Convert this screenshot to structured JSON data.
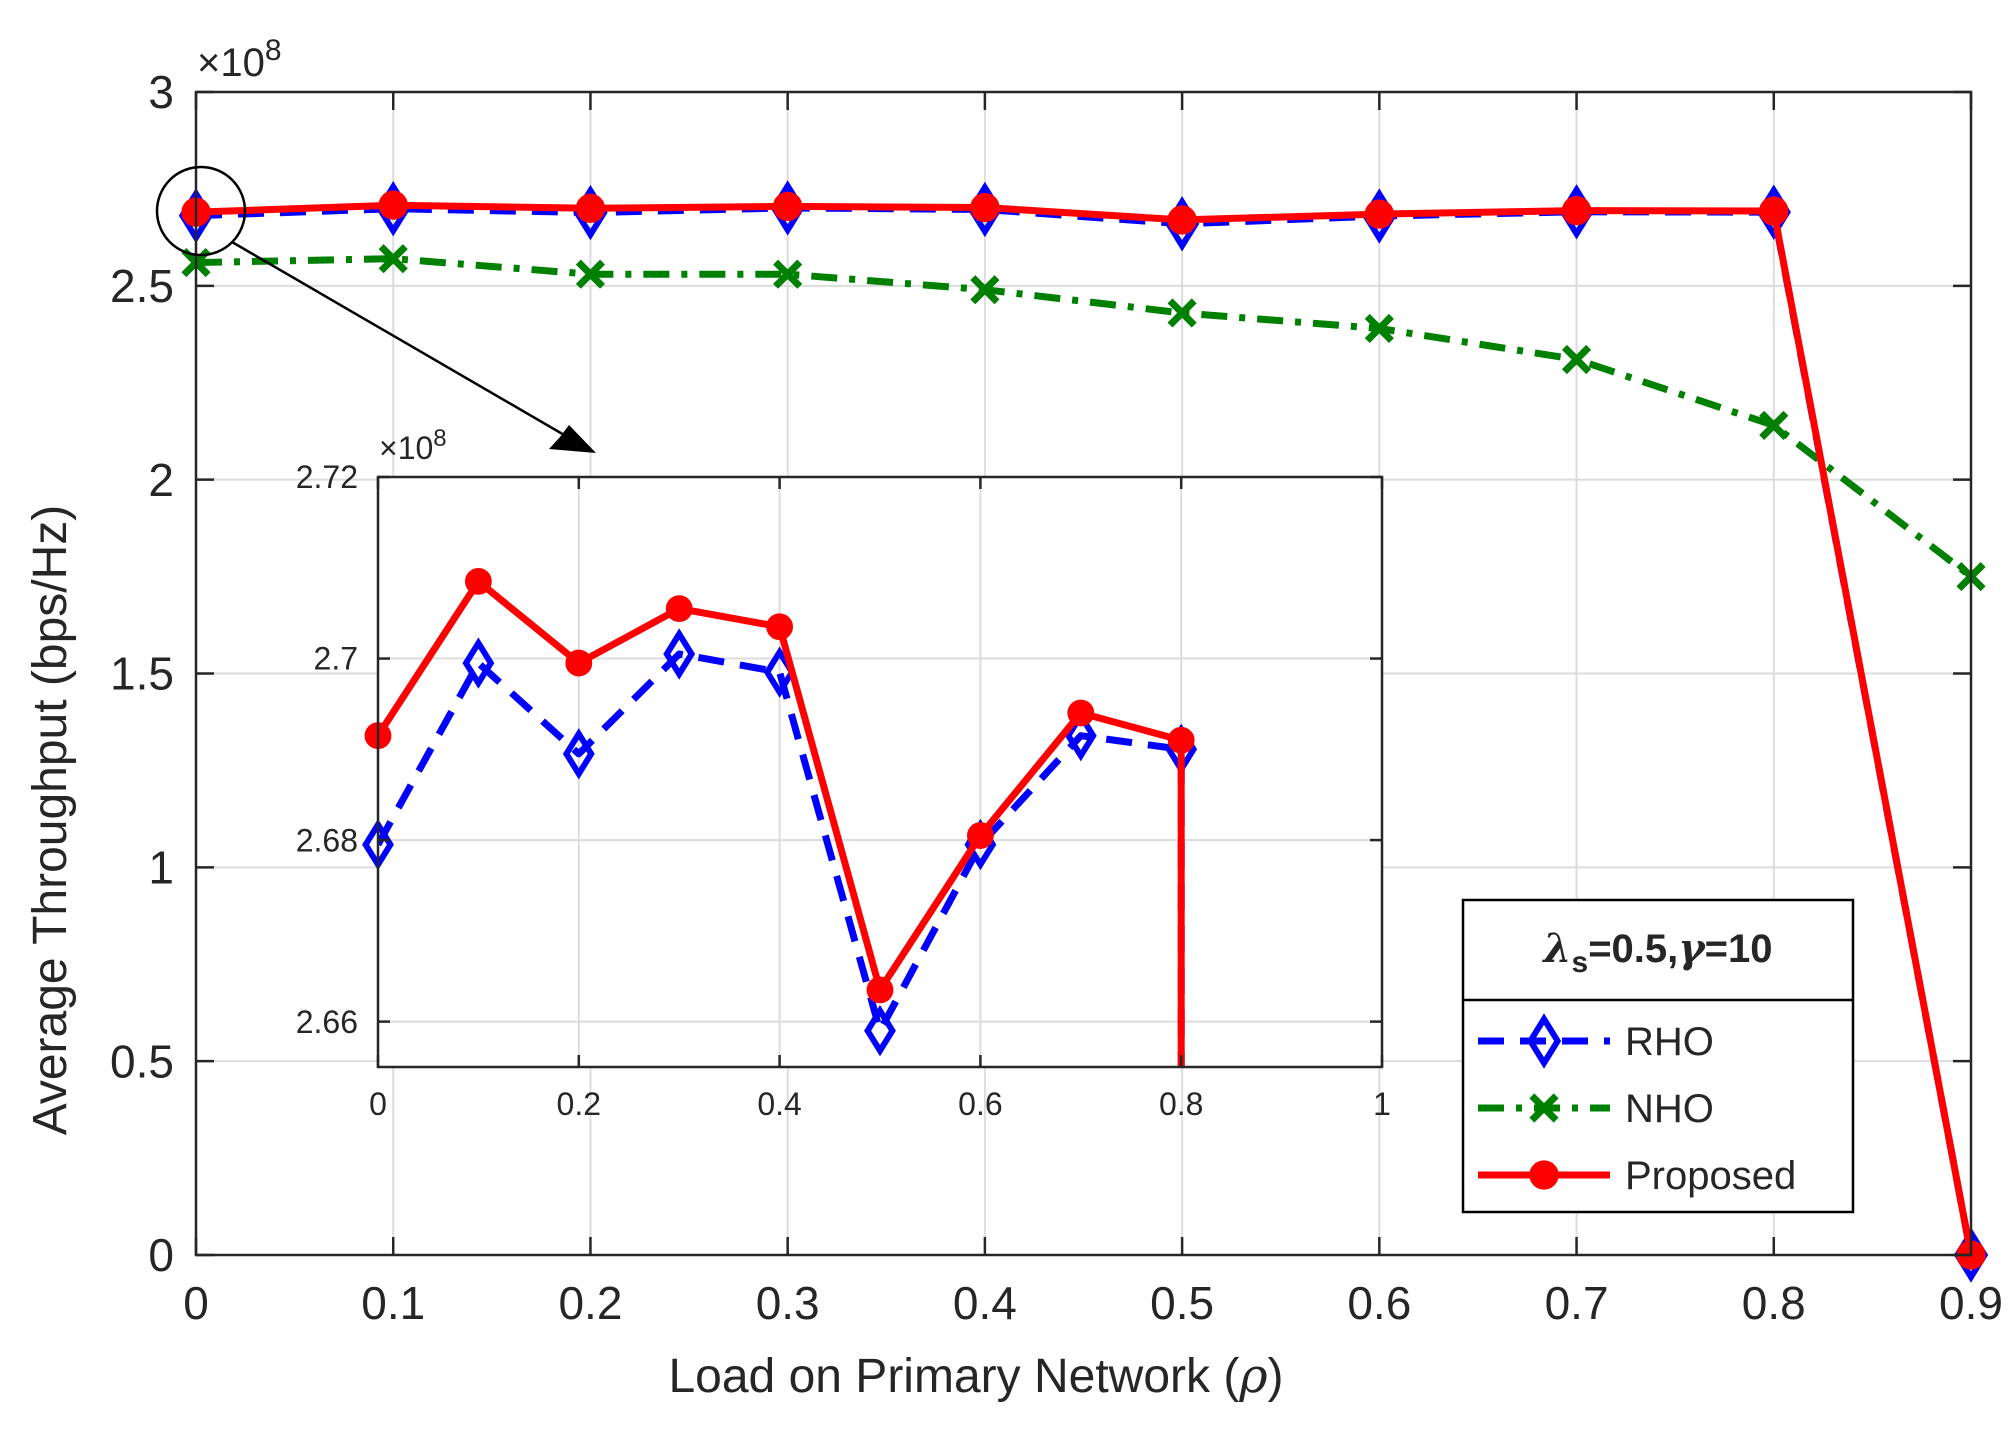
{
  "chart_data": [
    {
      "id": "main",
      "type": "line",
      "xlabel": "Load on Primary Network (",
      "xlabel_symbol": "ρ",
      "xlabel_close": ")",
      "ylabel": "Average Throughput (bps/Hz)",
      "exponent_base": "×10",
      "exponent_power": "8",
      "xlim": [
        0,
        0.9
      ],
      "ylim": [
        0,
        3
      ],
      "xticks": [
        0,
        0.1,
        0.2,
        0.3,
        0.4,
        0.5,
        0.6,
        0.7,
        0.8,
        0.9
      ],
      "xtick_labels": [
        "0",
        "0.1",
        "0.2",
        "0.3",
        "0.4",
        "0.5",
        "0.6",
        "0.7",
        "0.8",
        "0.9"
      ],
      "yticks": [
        0,
        0.5,
        1,
        1.5,
        2,
        2.5,
        3
      ],
      "ytick_labels": [
        "0",
        "0.5",
        "1",
        "1.5",
        "2",
        "2.5",
        "3"
      ],
      "x": [
        0,
        0.1,
        0.2,
        0.3,
        0.4,
        0.5,
        0.6,
        0.7,
        0.8,
        0.9
      ],
      "series": [
        {
          "name": "RHO",
          "color": "#0000ff",
          "marker": "diamond",
          "dash": "dashed",
          "values": [
            2.681,
            2.699,
            2.689,
            2.701,
            2.697,
            2.66,
            2.68,
            2.691,
            2.69,
            0
          ]
        },
        {
          "name": "NHO",
          "color": "#008000",
          "marker": "x",
          "dash": "dashdot",
          "values": [
            2.56,
            2.57,
            2.53,
            2.53,
            2.49,
            2.43,
            2.39,
            2.31,
            2.14,
            1.75
          ]
        },
        {
          "name": "Proposed",
          "color": "#ff0000",
          "marker": "circle",
          "dash": "solid",
          "values": [
            2.69,
            2.708,
            2.7,
            2.705,
            2.702,
            2.67,
            2.685,
            2.694,
            2.693,
            0
          ]
        }
      ]
    },
    {
      "id": "inset",
      "type": "line",
      "exponent_base": "×10",
      "exponent_power": "8",
      "xlim": [
        0,
        1
      ],
      "ylim": [
        2.655,
        2.72
      ],
      "xticks": [
        0,
        0.2,
        0.4,
        0.6,
        0.8,
        1
      ],
      "xtick_labels": [
        "0",
        "0.2",
        "0.4",
        "0.6",
        "0.8",
        "1"
      ],
      "yticks": [
        2.66,
        2.68,
        2.7,
        2.72
      ],
      "ytick_labels": [
        "2.66",
        "2.68",
        "2.7",
        "2.72"
      ],
      "x": [
        0,
        0.1,
        0.2,
        0.3,
        0.4,
        0.5,
        0.6,
        0.7,
        0.8,
        0.8
      ],
      "series": [
        {
          "name": "RHO",
          "color": "#0000ff",
          "marker": "diamond",
          "dash": "dashed",
          "values": [
            2.6795,
            2.6995,
            2.6895,
            2.7005,
            2.6985,
            2.659,
            2.6795,
            2.6915,
            2.69,
            2.655
          ]
        },
        {
          "name": "Proposed",
          "color": "#ff0000",
          "marker": "circle",
          "dash": "solid",
          "values": [
            2.6915,
            2.7085,
            2.6995,
            2.7055,
            2.7035,
            2.6635,
            2.6805,
            2.694,
            2.691,
            2.655
          ]
        }
      ]
    }
  ],
  "legend": {
    "title_symbol": "λ",
    "title_sub": "s",
    "title_rest": "=0.5,",
    "title_symbol2": "γ",
    "title_rest2": "=10",
    "entries": [
      "RHO",
      "NHO",
      "Proposed"
    ]
  }
}
